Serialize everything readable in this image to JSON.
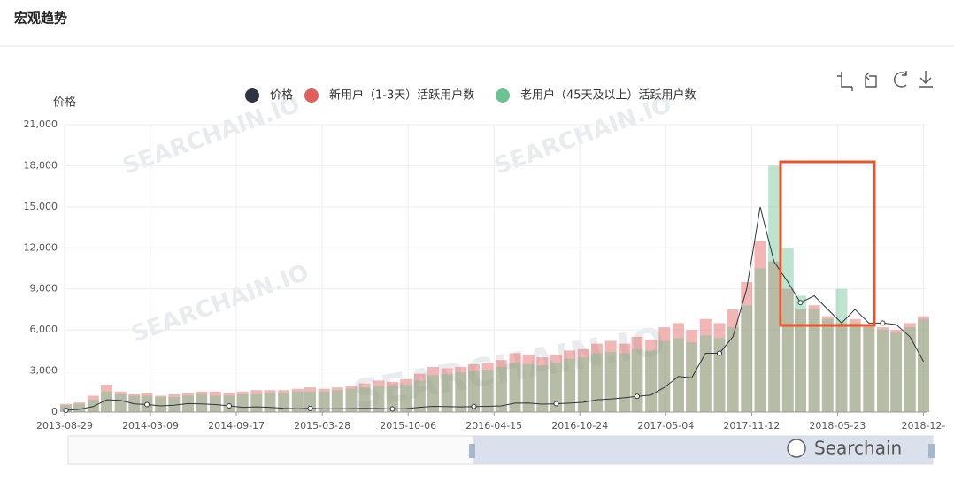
{
  "chart_data": {
    "type": "bar-line",
    "title": "宏观趋势",
    "y_label": "价格",
    "watermark": "SEARCHAIN.IO",
    "logo": "Searchain",
    "x": [
      "2013-09-01",
      "2013-10-01",
      "2013-11-01",
      "2013-12-01",
      "2014-01-01",
      "2014-02-01",
      "2014-03-01",
      "2014-04-01",
      "2014-05-01",
      "2014-06-01",
      "2014-07-01",
      "2014-08-01",
      "2014-09-01",
      "2014-10-01",
      "2014-11-01",
      "2014-12-01",
      "2015-01-01",
      "2015-02-01",
      "2015-03-01",
      "2015-04-01",
      "2015-05-01",
      "2015-06-01",
      "2015-07-01",
      "2015-08-01",
      "2015-09-01",
      "2015-10-01",
      "2015-11-01",
      "2015-12-01",
      "2016-01-01",
      "2016-02-01",
      "2016-03-01",
      "2016-04-01",
      "2016-05-01",
      "2016-06-01",
      "2016-07-01",
      "2016-08-01",
      "2016-09-01",
      "2016-10-01",
      "2016-11-01",
      "2016-12-01",
      "2017-01-01",
      "2017-02-01",
      "2017-03-01",
      "2017-04-01",
      "2017-05-01",
      "2017-06-01",
      "2017-07-01",
      "2017-08-01",
      "2017-09-01",
      "2017-10-01",
      "2017-11-01",
      "2017-12-01",
      "2018-01-01",
      "2018-02-01",
      "2018-03-01",
      "2018-04-01",
      "2018-05-01",
      "2018-06-01",
      "2018-07-01",
      "2018-08-01",
      "2018-09-01",
      "2018-10-01",
      "2018-11-01",
      "2018-12-01"
    ],
    "series": [
      {
        "name": "价格",
        "color": "#2f3541",
        "kind": "line",
        "values": [
          130,
          200,
          400,
          900,
          850,
          600,
          550,
          450,
          500,
          620,
          600,
          550,
          450,
          350,
          380,
          350,
          280,
          240,
          270,
          230,
          240,
          250,
          280,
          260,
          230,
          250,
          350,
          420,
          400,
          380,
          410,
          420,
          450,
          650,
          660,
          580,
          610,
          650,
          720,
          900,
          950,
          1050,
          1150,
          1250,
          1800,
          2600,
          2500,
          4300,
          4300,
          5500,
          9000,
          15000,
          11000,
          9500,
          8000,
          8500,
          7500,
          6500,
          7500,
          6500,
          6500,
          6400,
          5500,
          3700
        ]
      },
      {
        "name": "新用户（1-3天）活跃用户数",
        "color": "#e2605a",
        "kind": "bar",
        "values": [
          600,
          700,
          1200,
          2000,
          1500,
          1300,
          1400,
          1200,
          1300,
          1400,
          1500,
          1500,
          1400,
          1500,
          1600,
          1600,
          1600,
          1700,
          1800,
          1700,
          1800,
          1900,
          2100,
          2300,
          2200,
          2400,
          2800,
          3300,
          3200,
          3300,
          3500,
          3600,
          3800,
          4300,
          4200,
          4000,
          4200,
          4500,
          4600,
          5000,
          5200,
          5000,
          5500,
          5300,
          6200,
          6500,
          6000,
          6800,
          6500,
          7500,
          9500,
          12500,
          11000,
          9000,
          7500,
          7800,
          7000,
          6500,
          6800,
          6300,
          6200,
          6000,
          6500,
          7000
        ]
      },
      {
        "name": "老用户（45天及以上）活跃用户数",
        "color": "#6cc392",
        "kind": "bar",
        "values": [
          500,
          600,
          900,
          1500,
          1300,
          1200,
          1200,
          1100,
          1100,
          1200,
          1300,
          1200,
          1200,
          1300,
          1300,
          1400,
          1400,
          1500,
          1500,
          1500,
          1600,
          1700,
          1800,
          1900,
          1900,
          2000,
          2300,
          2700,
          2800,
          2900,
          3000,
          3100,
          3300,
          3600,
          3500,
          3400,
          3600,
          3900,
          4000,
          4300,
          4400,
          4300,
          4600,
          4500,
          5200,
          5400,
          5100,
          5600,
          5400,
          6200,
          7800,
          10500,
          18000,
          12000,
          8500,
          7500,
          6800,
          9000,
          6500,
          6200,
          6000,
          5800,
          6200,
          6800
        ]
      }
    ],
    "xlim": [
      "2013-08-29",
      "2018-12-10"
    ],
    "xticks": [
      "2013-08-29",
      "2014-03-09",
      "2014-09-17",
      "2015-03-28",
      "2015-10-06",
      "2016-04-15",
      "2016-10-24",
      "2017-05-04",
      "2017-11-12",
      "2018-05-23",
      {
        "value": "2018-12-01",
        "label": "2018-12-"
      }
    ],
    "ylim": [
      0,
      21000
    ],
    "yticks": [
      0,
      {
        "value": 3000,
        "label": "3,000"
      },
      {
        "value": 6000,
        "label": "6,000"
      },
      {
        "value": 9000,
        "label": "9,000"
      },
      {
        "value": 12000,
        "label": "12,000"
      },
      {
        "value": 15000,
        "label": "15,000"
      },
      {
        "value": 18000,
        "label": "18,000"
      },
      {
        "value": 21000,
        "label": "21,000"
      }
    ],
    "grid": true
  }
}
